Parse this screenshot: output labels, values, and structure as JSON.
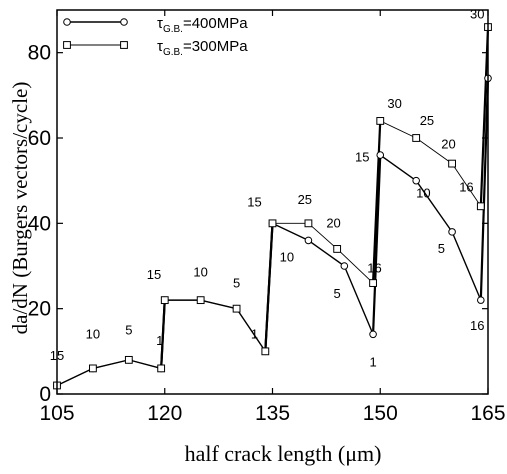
{
  "chart_data": {
    "type": "line",
    "xlabel": "half crack length (μm)",
    "ylabel": "da/dN (Burgers vectors/cycle)",
    "xlim": [
      105,
      165
    ],
    "ylim": [
      0,
      90
    ],
    "x_ticks": [
      "105",
      "120",
      "135",
      "150",
      "165"
    ],
    "y_ticks": [
      "0",
      "20",
      "40",
      "60",
      "80"
    ],
    "legend": {
      "placement": "top-left",
      "entries": [
        {
          "tau": "τ",
          "sub": "G.B.",
          "value": "=400MPa",
          "marker": "circle"
        },
        {
          "tau": "τ",
          "sub": "G.B.",
          "value": "=300MPa",
          "marker": "square"
        }
      ]
    },
    "series": [
      {
        "name": "τG.B.=400MPa",
        "marker": "circle",
        "points": [
          [
            105,
            2
          ],
          [
            110,
            6
          ],
          [
            115,
            8
          ],
          [
            119.5,
            6
          ],
          [
            120,
            22
          ],
          [
            125,
            22
          ],
          [
            130,
            20
          ],
          [
            134,
            10
          ],
          [
            135,
            40
          ],
          [
            140,
            36
          ],
          [
            145,
            30
          ],
          [
            149,
            14
          ],
          [
            150,
            56
          ],
          [
            155,
            50
          ],
          [
            160,
            38
          ],
          [
            164,
            22
          ],
          [
            165,
            74
          ]
        ]
      },
      {
        "name": "τG.B.=300MPa",
        "marker": "square",
        "points": [
          [
            105,
            2
          ],
          [
            110,
            6
          ],
          [
            115,
            8
          ],
          [
            119.5,
            6
          ],
          [
            120,
            22
          ],
          [
            125,
            22
          ],
          [
            130,
            20
          ],
          [
            134,
            10
          ],
          [
            135,
            40
          ],
          [
            140,
            40
          ],
          [
            144,
            34
          ],
          [
            149,
            26
          ],
          [
            150,
            64
          ],
          [
            155,
            60
          ],
          [
            160,
            54
          ],
          [
            164,
            44
          ],
          [
            165,
            86
          ]
        ]
      }
    ],
    "annotations": [
      {
        "text": "15",
        "x": 105,
        "y": 8
      },
      {
        "text": "10",
        "x": 110,
        "y": 13
      },
      {
        "text": "5",
        "x": 115,
        "y": 14
      },
      {
        "text": "1",
        "x": 119.3,
        "y": 11.5
      },
      {
        "text": "15",
        "x": 118.5,
        "y": 27
      },
      {
        "text": "10",
        "x": 125,
        "y": 27.5
      },
      {
        "text": "5",
        "x": 130,
        "y": 25
      },
      {
        "text": "1",
        "x": 132.5,
        "y": 13
      },
      {
        "text": "15",
        "x": 132.5,
        "y": 44
      },
      {
        "text": "25",
        "x": 139.5,
        "y": 44.5
      },
      {
        "text": "10",
        "x": 137,
        "y": 31
      },
      {
        "text": "20",
        "x": 143.5,
        "y": 39
      },
      {
        "text": "5",
        "x": 144,
        "y": 22.5
      },
      {
        "text": "16",
        "x": 149.2,
        "y": 28.5
      },
      {
        "text": "15",
        "x": 147.5,
        "y": 54.5
      },
      {
        "text": "1",
        "x": 149,
        "y": 6.5
      },
      {
        "text": "30",
        "x": 152,
        "y": 67
      },
      {
        "text": "25",
        "x": 156.5,
        "y": 63
      },
      {
        "text": "10",
        "x": 156,
        "y": 46
      },
      {
        "text": "20",
        "x": 159.5,
        "y": 57.5
      },
      {
        "text": "16",
        "x": 162,
        "y": 47.5
      },
      {
        "text": "5",
        "x": 158.5,
        "y": 33
      },
      {
        "text": "16",
        "x": 163.5,
        "y": 15
      },
      {
        "text": "30",
        "x": 163.5,
        "y": 88
      }
    ]
  }
}
